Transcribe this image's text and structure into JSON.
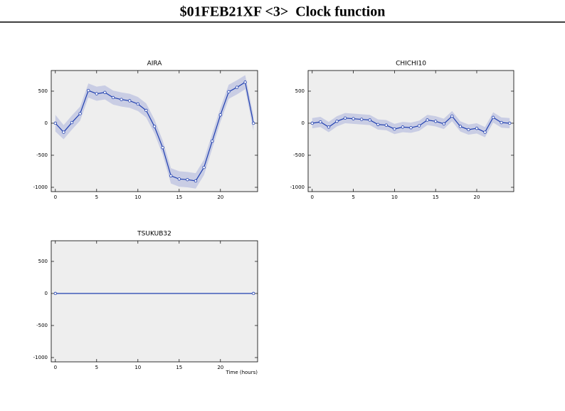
{
  "title": "$01FEB21XF <3>  Clock function",
  "chart_data": [
    {
      "type": "line",
      "title": "AIRA",
      "x": [
        0,
        1,
        2,
        3,
        4,
        5,
        6,
        7,
        8,
        9,
        10,
        11,
        12,
        13,
        14,
        15,
        16,
        17,
        18,
        19,
        20,
        21,
        22,
        23,
        24
      ],
      "values": [
        0,
        -140,
        10,
        150,
        510,
        460,
        480,
        400,
        370,
        350,
        300,
        200,
        -50,
        -380,
        -820,
        -870,
        -880,
        -900,
        -690,
        -280,
        130,
        490,
        560,
        640,
        0
      ],
      "errors": [
        130,
        110,
        110,
        110,
        110,
        110,
        110,
        110,
        110,
        110,
        110,
        110,
        110,
        110,
        120,
        120,
        120,
        120,
        120,
        120,
        110,
        110,
        110,
        110,
        120
      ],
      "color": "#1f3fb0",
      "band_color": "#c9cde4",
      "background": "#eeeeee",
      "xlim": [
        -0.5,
        24.5
      ],
      "ylim": [
        -1067,
        822
      ],
      "xticks": [
        0,
        5,
        10,
        15,
        20
      ],
      "yticks": [
        -1000,
        -500,
        0,
        500
      ]
    },
    {
      "type": "line",
      "title": "CHICHI10",
      "x": [
        0,
        1,
        2,
        3,
        4,
        5,
        6,
        7,
        8,
        9,
        10,
        11,
        12,
        13,
        14,
        15,
        16,
        17,
        18,
        19,
        20,
        21,
        22,
        23,
        24
      ],
      "values": [
        0,
        20,
        -60,
        30,
        80,
        70,
        60,
        50,
        -20,
        -30,
        -90,
        -60,
        -70,
        -40,
        50,
        30,
        -10,
        110,
        -50,
        -100,
        -80,
        -140,
        90,
        10,
        0
      ],
      "errors": [
        80,
        80,
        80,
        80,
        80,
        80,
        80,
        80,
        80,
        80,
        80,
        80,
        80,
        80,
        80,
        80,
        80,
        80,
        80,
        80,
        80,
        80,
        80,
        80,
        80
      ],
      "color": "#1f3fb0",
      "band_color": "#c9cde4",
      "background": "#eeeeee",
      "xlim": [
        -0.5,
        24.5
      ],
      "ylim": [
        -1067,
        822
      ],
      "xticks": [
        0,
        5,
        10,
        15,
        20
      ],
      "yticks": [
        -1000,
        -500,
        0,
        500
      ]
    },
    {
      "type": "line",
      "title": "TSUKUB32",
      "xlabel": "Time (hours)",
      "x": [
        0,
        24
      ],
      "values": [
        0,
        0
      ],
      "errors": [
        0,
        0
      ],
      "color": "#1f3fb0",
      "band_color": "#c9cde4",
      "background": "#eeeeee",
      "xlim": [
        -0.5,
        24.5
      ],
      "ylim": [
        -1067,
        822
      ],
      "xticks": [
        0,
        5,
        10,
        15,
        20
      ],
      "yticks": [
        -1000,
        -500,
        0,
        500
      ]
    }
  ]
}
